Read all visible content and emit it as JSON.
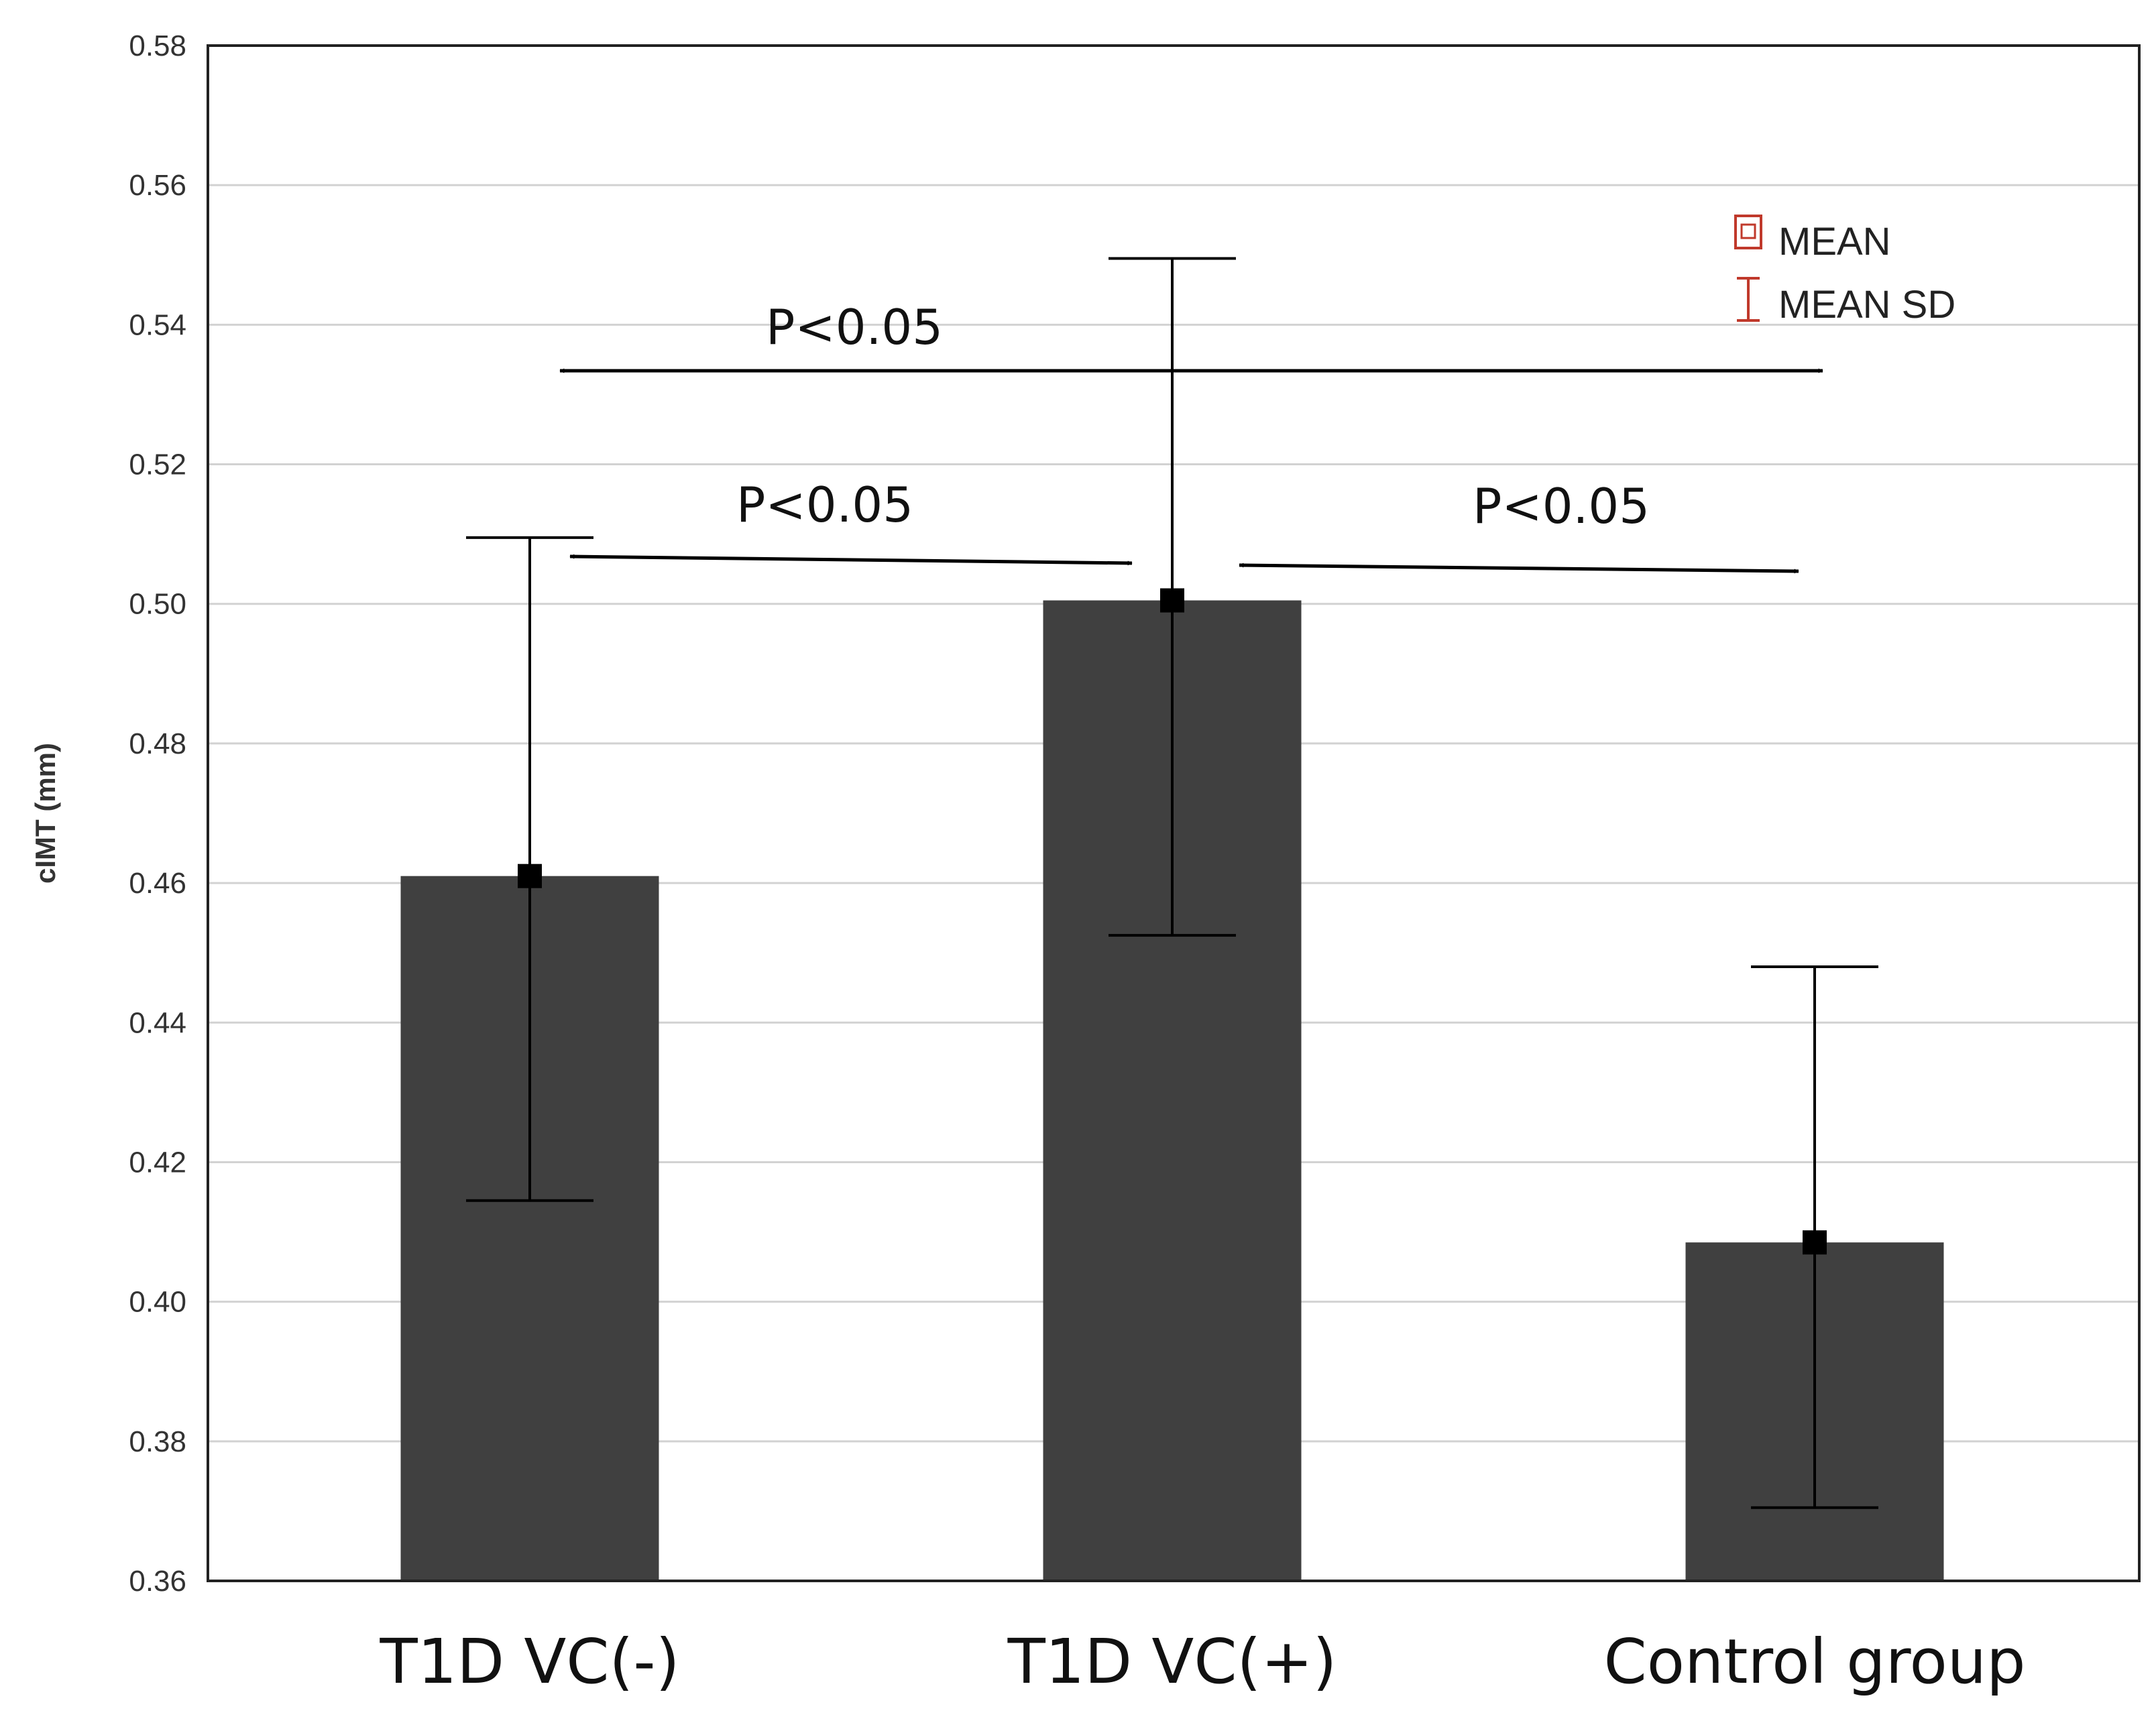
{
  "chart_data": {
    "type": "bar",
    "title": "",
    "xlabel": "",
    "ylabel": "cIMT (mm)",
    "categories": [
      "T1D VC(-)",
      "T1D VC(+)",
      "Control group"
    ],
    "series": [
      {
        "values": [
          0.461,
          0.5005,
          0.4085
        ],
        "sd_lower": [
          0.4145,
          0.4525,
          0.3705
        ],
        "sd_upper": [
          0.5095,
          0.5495,
          0.448
        ]
      }
    ],
    "ylim": [
      0.36,
      0.58
    ],
    "yticks": [
      "0.36",
      "0.38",
      "0.40",
      "0.42",
      "0.44",
      "0.46",
      "0.48",
      "0.50",
      "0.52",
      "0.54",
      "0.56",
      "0.58"
    ],
    "grid": true,
    "legend": {
      "placement": "top-right",
      "entries": [
        "MEAN",
        "MEAN SD"
      ]
    },
    "annotations": [
      {
        "text": "P<0.05",
        "from": "T1D VC(-)",
        "to": "Control group"
      },
      {
        "text": "P<0.05",
        "from": "T1D VC(-)",
        "to": "T1D VC(+)"
      },
      {
        "text": "P<0.05",
        "from": "T1D VC(+)",
        "to": "Control group"
      }
    ],
    "colors": {
      "bar": "#404040",
      "marker": "#000000",
      "legend_mean": "#c0392b",
      "legend_sd": "#c0392b"
    }
  }
}
